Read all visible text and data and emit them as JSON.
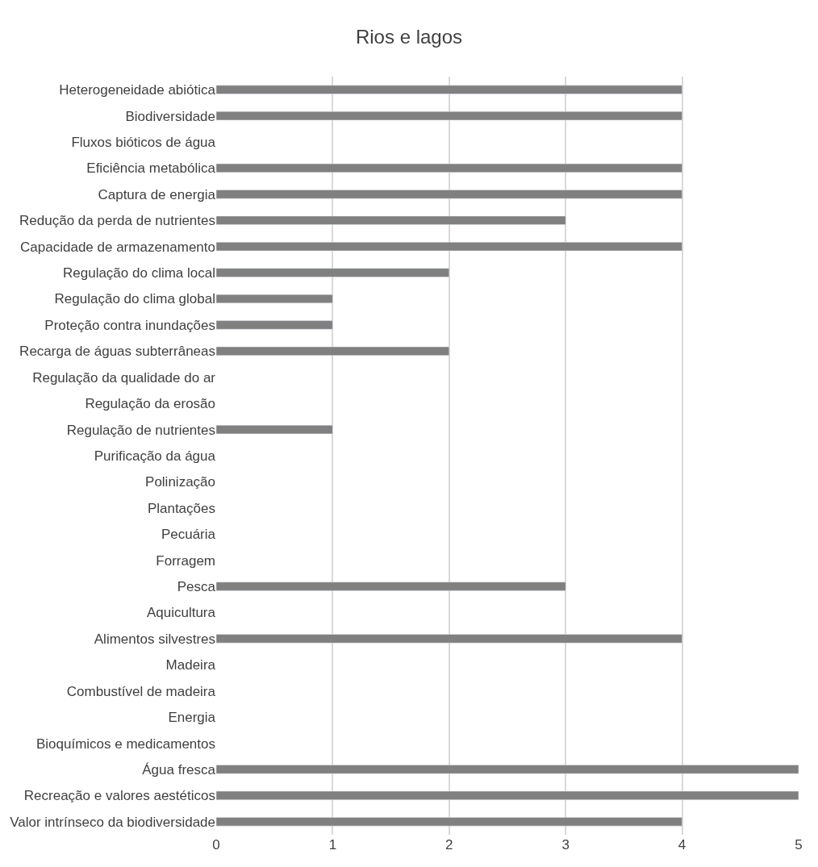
{
  "chart_data": {
    "type": "bar",
    "title": "Rios e lagos",
    "orientation": "horizontal",
    "categories": [
      "Heterogeneidade abiótica",
      "Biodiversidade",
      "Fluxos bióticos de água",
      "Eficiência metabólica",
      "Captura de energia",
      "Redução da perda de nutrientes",
      "Capacidade de armazenamento",
      "Regulação do clima local",
      "Regulação do clima global",
      "Proteção contra inundações",
      "Recarga de águas subterrâneas",
      "Regulação da qualidade do ar",
      "Regulação da erosão",
      "Regulação de nutrientes",
      "Purificação da água",
      "Polinização",
      "Plantações",
      "Pecuária",
      "Forragem",
      "Pesca",
      "Aquicultura",
      "Alimentos silvestres",
      "Madeira",
      "Combustível de madeira",
      "Energia",
      "Bioquímicos e medicamentos",
      "Água fresca",
      "Recreação e valores aestéticos",
      "Valor intrínseco da biodiversidade"
    ],
    "values": [
      4,
      4,
      null,
      4,
      4,
      3,
      4,
      2,
      1,
      1,
      2,
      null,
      null,
      1,
      null,
      null,
      null,
      null,
      null,
      3,
      null,
      4,
      null,
      null,
      null,
      null,
      5,
      5,
      4
    ],
    "color": "#808080",
    "xlim": [
      0,
      5
    ],
    "xticks": [
      0,
      1,
      2,
      3,
      4,
      5
    ],
    "grid": "x"
  }
}
